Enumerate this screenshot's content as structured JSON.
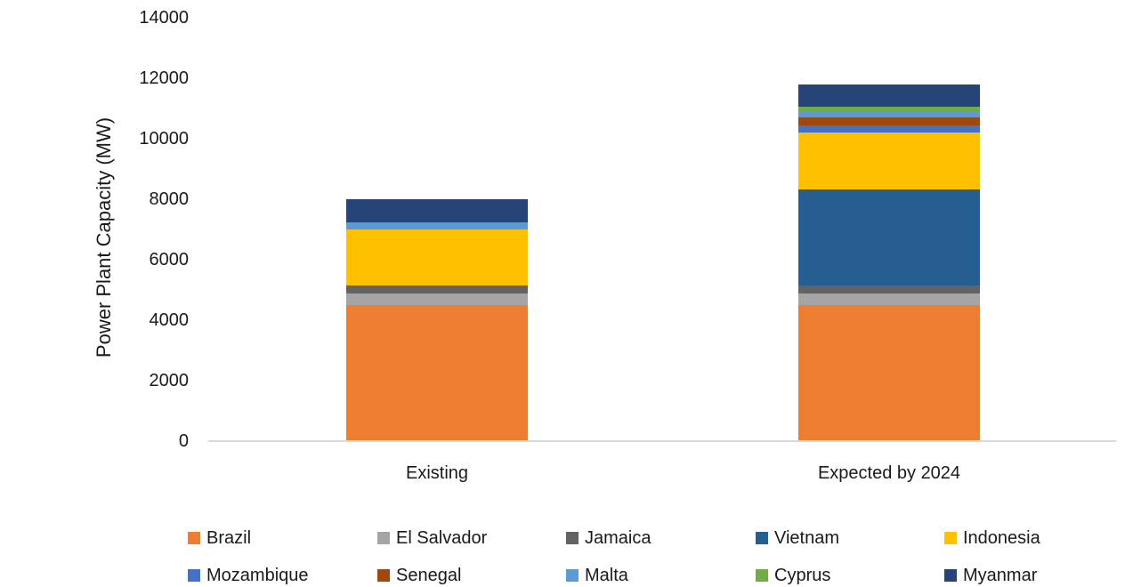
{
  "chart_data": {
    "type": "bar",
    "stacked": true,
    "title": "",
    "xlabel": "",
    "ylabel": "Power Plant Capacity (MW)",
    "categories": [
      "Existing",
      "Expected by 2024"
    ],
    "series": [
      {
        "name": "Brazil",
        "color": "#ED7D31",
        "values": [
          4460,
          4460
        ]
      },
      {
        "name": "El Salvador",
        "color": "#A5A5A5",
        "values": [
          390,
          390
        ]
      },
      {
        "name": "Jamaica",
        "color": "#636363",
        "values": [
          255,
          255
        ]
      },
      {
        "name": "Vietnam",
        "color": "#255E91",
        "values": [
          0,
          3200
        ]
      },
      {
        "name": "Indonesia",
        "color": "#FFC000",
        "values": [
          1870,
          1870
        ]
      },
      {
        "name": "Mozambique",
        "color": "#4472C4",
        "values": [
          0,
          235
        ]
      },
      {
        "name": "Senegal",
        "color": "#9E480E",
        "values": [
          0,
          260
        ]
      },
      {
        "name": "Malta",
        "color": "#5B9BD5",
        "values": [
          220,
          180
        ]
      },
      {
        "name": "Cyprus",
        "color": "#70AD47",
        "values": [
          0,
          175
        ]
      },
      {
        "name": "Myanmar",
        "color": "#264478",
        "values": [
          775,
          745
        ]
      }
    ],
    "totals": [
      7970,
      11770
    ],
    "ylim": [
      0,
      14000
    ],
    "ytick_step": 2000,
    "ytick_labels": [
      "0",
      "2000",
      "4000",
      "6000",
      "8000",
      "10000",
      "12000",
      "14000"
    ],
    "grid": false,
    "legend_position": "bottom",
    "legend_rows": 2,
    "axis_line_color": "#D9D9D9",
    "text_color": "#1A1A1A",
    "background_color": "#FFFFFF"
  }
}
